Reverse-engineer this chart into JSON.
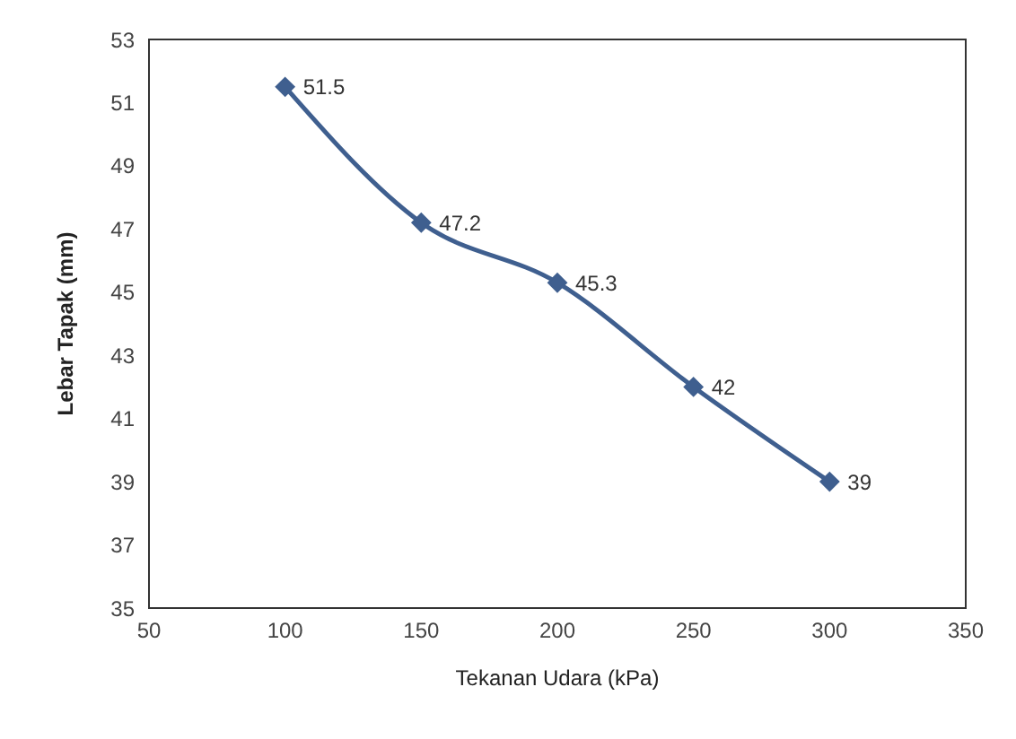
{
  "chart_data": {
    "type": "line",
    "xlabel": "Tekanan Udara (kPa)",
    "ylabel": "Lebar Tapak (mm)",
    "x": [
      100,
      150,
      200,
      250,
      300
    ],
    "series": [
      {
        "color": "#3f5f8f",
        "values": [
          51.5,
          47.2,
          45.3,
          42,
          39
        ]
      }
    ],
    "xlim": [
      50,
      350
    ],
    "xticks": [
      50,
      100,
      150,
      200,
      250,
      300,
      350
    ],
    "ylim": [
      35,
      53
    ],
    "yticks": [
      35,
      37,
      39,
      41,
      43,
      45,
      47,
      49,
      51,
      53
    ],
    "grid": false,
    "legend": false,
    "marker": "diamond",
    "line_style": "solid",
    "data_labels": true
  }
}
